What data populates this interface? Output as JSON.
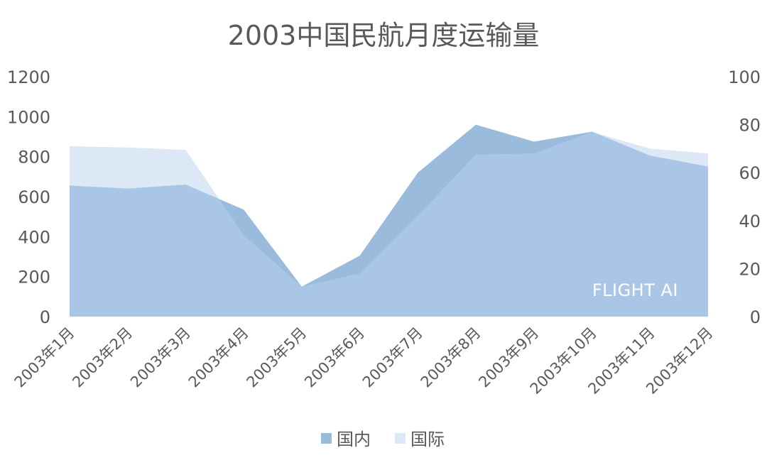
{
  "chart_data": {
    "type": "area",
    "title": "2003中国民航月度运输量",
    "categories": [
      "2003年1月",
      "2003年2月",
      "2003年3月",
      "2003年4月",
      "2003年5月",
      "2003年6月",
      "2003年7月",
      "2003年8月",
      "2003年9月",
      "2003年10月",
      "2003年11月",
      "2003年12月"
    ],
    "series": [
      {
        "name": "国内",
        "axis": "left",
        "color": "#9BBBDD",
        "values": [
          655,
          640,
          660,
          535,
          150,
          305,
          720,
          960,
          875,
          925,
          805,
          750
        ]
      },
      {
        "name": "国际",
        "axis": "right",
        "color": "#DCE8F6",
        "values": [
          71,
          70.5,
          69.5,
          34,
          12.5,
          18,
          42,
          67.5,
          68,
          77,
          70,
          68
        ]
      }
    ],
    "y_left": {
      "min": 0,
      "max": 1200,
      "ticks": [
        0,
        200,
        400,
        600,
        800,
        1000,
        1200
      ]
    },
    "y_right": {
      "min": 0,
      "max": 100,
      "ticks": [
        0,
        20,
        40,
        60,
        80,
        100
      ]
    },
    "grid": false,
    "legend_position": "bottom",
    "overlap_color": "#A9C6E6"
  },
  "watermark": "FLIGHT AI"
}
